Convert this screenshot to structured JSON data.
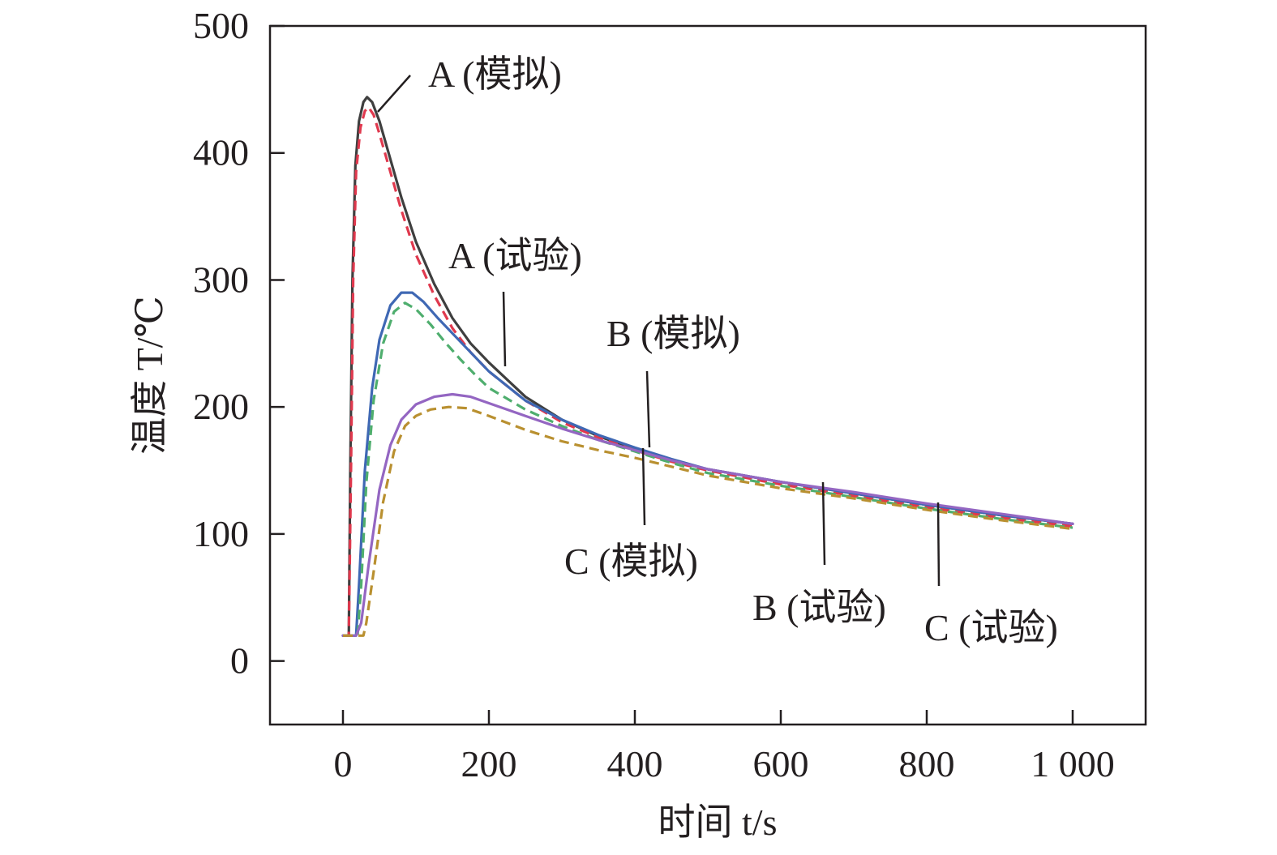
{
  "chart_data": {
    "type": "line",
    "title": "",
    "xlabel": "时间 t/s",
    "ylabel": "温度 T/℃",
    "xlim": [
      -100,
      1100
    ],
    "ylim": [
      -50,
      500
    ],
    "xticks": [
      0,
      200,
      400,
      600,
      800,
      1000
    ],
    "xtick_labels": [
      "0",
      "200",
      "400",
      "600",
      "800",
      "1 000"
    ],
    "yticks": [
      0,
      100,
      200,
      300,
      400,
      500
    ],
    "ytick_labels": [
      "0",
      "100",
      "200",
      "300",
      "400",
      "500"
    ],
    "grid": false,
    "legend": "none",
    "series": [
      {
        "name": "A (模拟)",
        "color": "#3f3f3f",
        "dash": "solid",
        "points": [
          [
            0,
            20
          ],
          [
            8,
            20
          ],
          [
            10,
            150
          ],
          [
            13,
            300
          ],
          [
            17,
            390
          ],
          [
            22,
            425
          ],
          [
            28,
            440
          ],
          [
            33,
            444
          ],
          [
            40,
            440
          ],
          [
            50,
            425
          ],
          [
            65,
            395
          ],
          [
            80,
            365
          ],
          [
            100,
            330
          ],
          [
            125,
            297
          ],
          [
            150,
            270
          ],
          [
            175,
            250
          ],
          [
            200,
            235
          ],
          [
            250,
            208
          ],
          [
            300,
            190
          ],
          [
            350,
            177
          ],
          [
            400,
            167
          ],
          [
            450,
            158
          ],
          [
            500,
            151
          ],
          [
            600,
            141
          ],
          [
            700,
            132
          ],
          [
            800,
            123
          ],
          [
            900,
            115
          ],
          [
            1000,
            108
          ]
        ]
      },
      {
        "name": "",
        "color": "#e0394e",
        "dash": "dashed",
        "points": [
          [
            0,
            20
          ],
          [
            8,
            20
          ],
          [
            11,
            150
          ],
          [
            14,
            300
          ],
          [
            18,
            385
          ],
          [
            24,
            420
          ],
          [
            30,
            433
          ],
          [
            35,
            436
          ],
          [
            42,
            430
          ],
          [
            50,
            415
          ],
          [
            65,
            385
          ],
          [
            80,
            355
          ],
          [
            100,
            320
          ],
          [
            125,
            288
          ],
          [
            150,
            262
          ],
          [
            175,
            243
          ],
          [
            200,
            228
          ],
          [
            250,
            205
          ],
          [
            300,
            188
          ],
          [
            350,
            176
          ],
          [
            400,
            166
          ],
          [
            450,
            157
          ],
          [
            500,
            150
          ],
          [
            600,
            139
          ],
          [
            700,
            130
          ],
          [
            800,
            121
          ],
          [
            900,
            113
          ],
          [
            1000,
            106
          ]
        ]
      },
      {
        "name": "B (模拟)",
        "color": "#3f68b4",
        "dash": "solid",
        "points": [
          [
            0,
            20
          ],
          [
            18,
            20
          ],
          [
            22,
            60
          ],
          [
            30,
            150
          ],
          [
            40,
            215
          ],
          [
            50,
            253
          ],
          [
            65,
            280
          ],
          [
            80,
            290
          ],
          [
            95,
            290
          ],
          [
            110,
            283
          ],
          [
            130,
            270
          ],
          [
            150,
            258
          ],
          [
            175,
            243
          ],
          [
            200,
            228
          ],
          [
            250,
            205
          ],
          [
            300,
            190
          ],
          [
            350,
            178
          ],
          [
            400,
            168
          ],
          [
            450,
            159
          ],
          [
            500,
            151
          ],
          [
            600,
            141
          ],
          [
            700,
            132
          ],
          [
            800,
            123
          ],
          [
            900,
            115
          ],
          [
            1000,
            108
          ]
        ]
      },
      {
        "name": "A (试验)",
        "color": "#4fae6e",
        "dash": "dashed",
        "points": [
          [
            0,
            20
          ],
          [
            20,
            20
          ],
          [
            25,
            60
          ],
          [
            32,
            140
          ],
          [
            42,
            205
          ],
          [
            55,
            250
          ],
          [
            70,
            275
          ],
          [
            85,
            282
          ],
          [
            100,
            277
          ],
          [
            120,
            265
          ],
          [
            140,
            251
          ],
          [
            160,
            238
          ],
          [
            180,
            226
          ],
          [
            200,
            215
          ],
          [
            250,
            198
          ],
          [
            300,
            185
          ],
          [
            350,
            174
          ],
          [
            400,
            165
          ],
          [
            450,
            156
          ],
          [
            500,
            148
          ],
          [
            600,
            138
          ],
          [
            700,
            129
          ],
          [
            800,
            120
          ],
          [
            900,
            112
          ],
          [
            1000,
            105
          ]
        ]
      },
      {
        "name": "C (模拟)",
        "color": "#9466c2",
        "dash": "solid",
        "points": [
          [
            0,
            20
          ],
          [
            18,
            20
          ],
          [
            25,
            30
          ],
          [
            35,
            75
          ],
          [
            50,
            135
          ],
          [
            65,
            170
          ],
          [
            80,
            190
          ],
          [
            100,
            202
          ],
          [
            125,
            208
          ],
          [
            150,
            210
          ],
          [
            175,
            208
          ],
          [
            200,
            203
          ],
          [
            250,
            193
          ],
          [
            300,
            183
          ],
          [
            350,
            174
          ],
          [
            400,
            166
          ],
          [
            450,
            158
          ],
          [
            500,
            151
          ],
          [
            600,
            141
          ],
          [
            700,
            133
          ],
          [
            800,
            124
          ],
          [
            900,
            116
          ],
          [
            1000,
            108
          ]
        ]
      },
      {
        "name": "",
        "color": "#b99030",
        "dash": "dashed",
        "points": [
          [
            0,
            20
          ],
          [
            28,
            20
          ],
          [
            32,
            30
          ],
          [
            42,
            70
          ],
          [
            55,
            125
          ],
          [
            70,
            165
          ],
          [
            85,
            185
          ],
          [
            100,
            193
          ],
          [
            120,
            198
          ],
          [
            145,
            200
          ],
          [
            170,
            199
          ],
          [
            200,
            193
          ],
          [
            250,
            182
          ],
          [
            300,
            173
          ],
          [
            350,
            166
          ],
          [
            400,
            160
          ],
          [
            450,
            153
          ],
          [
            500,
            146
          ],
          [
            600,
            136
          ],
          [
            700,
            128
          ],
          [
            800,
            119
          ],
          [
            900,
            111
          ],
          [
            1000,
            104
          ]
        ]
      }
    ],
    "annotations": [
      {
        "text": "A (模拟)",
        "lx": 30,
        "ly": 430,
        "tx": 45,
        "ty": 450
      },
      {
        "text": "A (试验)",
        "lx": 220,
        "ly": 230,
        "tx": 220,
        "ty": 290
      },
      {
        "text": "B (模拟)",
        "lx": 420,
        "ly": 165,
        "tx": 420,
        "ty": 230
      },
      {
        "text": "C (模拟)",
        "lx": 410,
        "ly": 160,
        "tx": 410,
        "ty": 105
      },
      {
        "text": "B (试验)",
        "lx": 655,
        "ly": 135,
        "tx": 655,
        "ty": 75
      },
      {
        "text": "C (试验)",
        "lx": 815,
        "ly": 122,
        "tx": 815,
        "ty": 57
      }
    ]
  }
}
